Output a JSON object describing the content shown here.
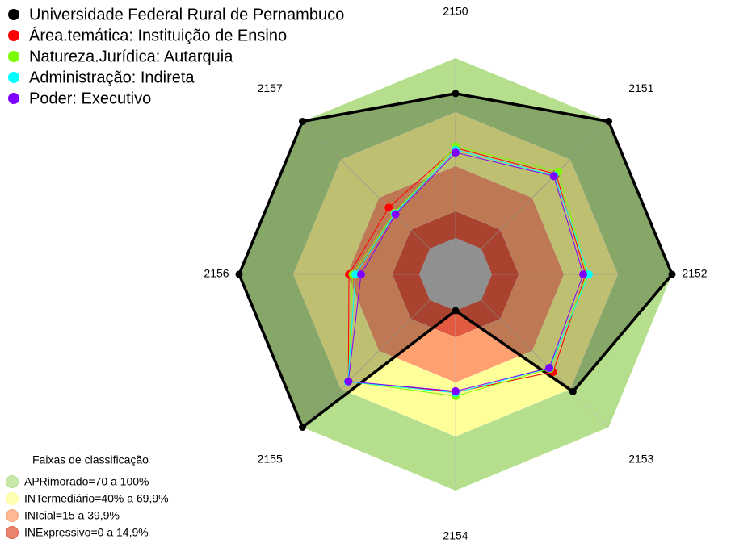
{
  "chart_data": {
    "type": "radar",
    "categories": [
      "2150",
      "2151",
      "2152",
      "2153",
      "2154",
      "2155",
      "2156",
      "2157"
    ],
    "ylim": [
      0,
      100
    ],
    "series": [
      {
        "name": "Universidade Federal Rural de Pernambuco",
        "color": "#000000",
        "values": [
          80.3,
          100,
          100,
          72,
          0,
          100,
          100,
          100
        ]
      },
      {
        "name": "Área.temática: Instituição de Ensino",
        "color": "#ff0000",
        "values": [
          50,
          58.7,
          52,
          56.5,
          45.3,
          64,
          39,
          32.3
        ]
      },
      {
        "name": "Natureza.Jurídica: Autarquia",
        "color": "#7cfc00",
        "values": [
          50.9,
          60.5,
          53,
          54,
          47.5,
          64,
          37,
          28
        ]
      },
      {
        "name": "Administração: Indireta",
        "color": "#00ffff",
        "values": [
          49,
          57.5,
          53.8,
          53.5,
          45.7,
          64.3,
          35.4,
          27.5
        ]
      },
      {
        "name": "Poder: Executivo",
        "color": "#7f00ff",
        "values": [
          47.5,
          57,
          50.7,
          53.4,
          44.8,
          64,
          32.3,
          27
        ]
      }
    ],
    "bands_title": "Faixas de classificação",
    "bands": [
      {
        "name": "APRimorado=70 a 100%",
        "color": "#b5df8c",
        "range": [
          70,
          100
        ]
      },
      {
        "name": "INTermediário=40% a 69,9%",
        "color": "#ffff99",
        "range": [
          40,
          69.9
        ]
      },
      {
        "name": "INIcial=15 a 39,9%",
        "color": "#ffa070",
        "range": [
          15,
          39.9
        ]
      },
      {
        "name": "INExpressivo=0 a 14,9%",
        "color": "#e25a40",
        "range": [
          0,
          14.9
        ]
      }
    ]
  }
}
